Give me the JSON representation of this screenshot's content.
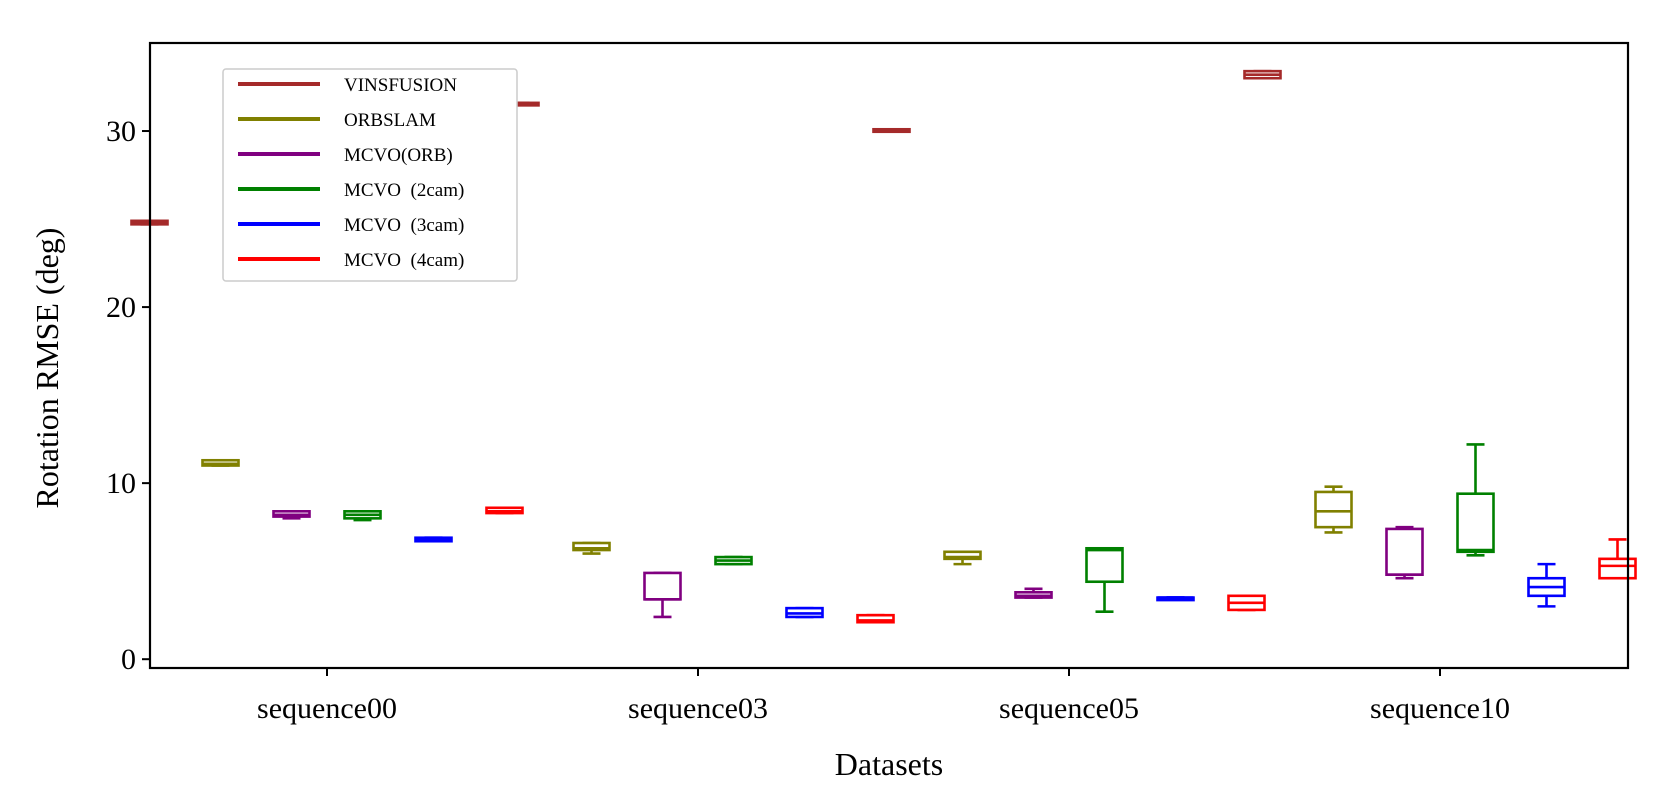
{
  "chart_data": {
    "type": "box",
    "title": "",
    "xlabel": "Datasets",
    "ylabel": "Rotation RMSE (deg)",
    "ylim": [
      -0.5,
      35
    ],
    "yticks": [
      0,
      10,
      20,
      30
    ],
    "categories": [
      "sequence00",
      "sequence03",
      "sequence05",
      "sequence10"
    ],
    "legend_position": "top-left",
    "series": [
      {
        "name": "VINSFUSION",
        "color": "#a52a2a",
        "boxes": [
          {
            "whislo": 24.7,
            "q1": 24.7,
            "med": 24.8,
            "q3": 24.9,
            "whishi": 24.9
          },
          {
            "whislo": 31.5,
            "q1": 31.5,
            "med": 31.5,
            "q3": 31.6,
            "whishi": 31.6
          },
          {
            "whislo": 30.0,
            "q1": 30.0,
            "med": 30.1,
            "q3": 30.1,
            "whishi": 30.1
          },
          {
            "whislo": 33.0,
            "q1": 33.0,
            "med": 33.2,
            "q3": 33.4,
            "whishi": 33.4
          }
        ]
      },
      {
        "name": "ORBSLAM",
        "color": "#808000",
        "boxes": [
          {
            "whislo": 11.0,
            "q1": 11.0,
            "med": 11.1,
            "q3": 11.3,
            "whishi": 11.3
          },
          {
            "whislo": 6.0,
            "q1": 6.2,
            "med": 6.3,
            "q3": 6.6,
            "whishi": 6.6
          },
          {
            "whislo": 5.4,
            "q1": 5.7,
            "med": 5.8,
            "q3": 6.1,
            "whishi": 6.1
          },
          {
            "whislo": 7.2,
            "q1": 7.5,
            "med": 8.4,
            "q3": 9.5,
            "whishi": 9.8
          }
        ]
      },
      {
        "name": "MCVO(ORB)",
        "color": "#800080",
        "boxes": [
          {
            "whislo": 8.0,
            "q1": 8.1,
            "med": 8.2,
            "q3": 8.4,
            "whishi": 8.4
          },
          {
            "whislo": 2.4,
            "q1": 3.4,
            "med": 3.4,
            "q3": 4.9,
            "whishi": 4.9
          },
          {
            "whislo": 3.5,
            "q1": 3.5,
            "med": 3.6,
            "q3": 3.8,
            "whishi": 4.0
          },
          {
            "whislo": 4.6,
            "q1": 4.8,
            "med": 4.8,
            "q3": 7.4,
            "whishi": 7.5
          }
        ]
      },
      {
        "name": "MCVO  (2cam)",
        "color": "#008000",
        "boxes": [
          {
            "whislo": 7.9,
            "q1": 8.0,
            "med": 8.2,
            "q3": 8.4,
            "whishi": 8.4
          },
          {
            "whislo": 5.4,
            "q1": 5.4,
            "med": 5.6,
            "q3": 5.8,
            "whishi": 5.8
          },
          {
            "whislo": 2.7,
            "q1": 4.4,
            "med": 6.2,
            "q3": 6.3,
            "whishi": 6.3
          },
          {
            "whislo": 5.9,
            "q1": 6.1,
            "med": 6.2,
            "q3": 9.4,
            "whishi": 12.2
          }
        ]
      },
      {
        "name": "MCVO  (3cam)",
        "color": "#0000ff",
        "boxes": [
          {
            "whislo": 6.7,
            "q1": 6.7,
            "med": 6.8,
            "q3": 6.9,
            "whishi": 6.9
          },
          {
            "whislo": 2.4,
            "q1": 2.4,
            "med": 2.6,
            "q3": 2.9,
            "whishi": 2.9
          },
          {
            "whislo": 3.5,
            "q1": 3.5,
            "med": 3.5,
            "q3": 3.5,
            "whishi": 3.5
          },
          {
            "whislo": 3.0,
            "q1": 3.6,
            "med": 4.1,
            "q3": 4.6,
            "whishi": 5.4
          }
        ]
      },
      {
        "name": "MCVO  (4cam)",
        "color": "#ff0000",
        "boxes": [
          {
            "whislo": 8.3,
            "q1": 8.3,
            "med": 8.4,
            "q3": 8.6,
            "whishi": 8.6
          },
          {
            "whislo": 2.1,
            "q1": 2.1,
            "med": 2.2,
            "q3": 2.5,
            "whishi": 2.5
          },
          {
            "whislo": 2.8,
            "q1": 2.8,
            "med": 3.2,
            "q3": 3.6,
            "whishi": 3.6
          },
          {
            "whislo": 4.6,
            "q1": 4.6,
            "med": 5.3,
            "q3": 5.7,
            "whishi": 6.8
          }
        ]
      }
    ]
  }
}
